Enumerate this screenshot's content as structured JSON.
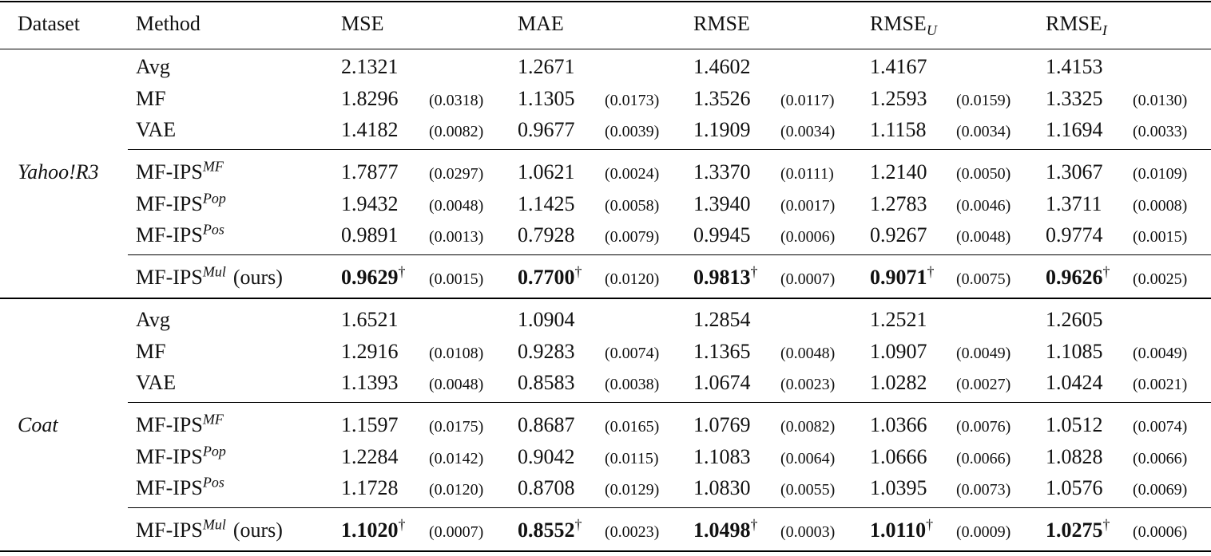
{
  "table": {
    "columns": [
      {
        "text": "Dataset"
      },
      {
        "text": "Method"
      },
      {
        "text": "MSE"
      },
      {
        "text": "MAE"
      },
      {
        "text": "RMSE"
      },
      {
        "text": "RMSE",
        "sub": "U"
      },
      {
        "text": "RMSE",
        "sub": "I"
      }
    ],
    "groups": [
      {
        "dataset": "Yahoo!R3",
        "blocks": [
          [
            {
              "method": {
                "text": "Avg"
              },
              "cells": [
                {
                  "value": "2.1321"
                },
                {
                  "value": "1.2671"
                },
                {
                  "value": "1.4602"
                },
                {
                  "value": "1.4167"
                },
                {
                  "value": "1.4153"
                }
              ]
            },
            {
              "method": {
                "text": "MF"
              },
              "cells": [
                {
                  "value": "1.8296",
                  "std": "(0.0318)"
                },
                {
                  "value": "1.1305",
                  "std": "(0.0173)"
                },
                {
                  "value": "1.3526",
                  "std": "(0.0117)"
                },
                {
                  "value": "1.2593",
                  "std": "(0.0159)"
                },
                {
                  "value": "1.3325",
                  "std": "(0.0130)"
                }
              ]
            },
            {
              "method": {
                "text": "VAE"
              },
              "cells": [
                {
                  "value": "1.4182",
                  "std": "(0.0082)"
                },
                {
                  "value": "0.9677",
                  "std": "(0.0039)"
                },
                {
                  "value": "1.1909",
                  "std": "(0.0034)"
                },
                {
                  "value": "1.1158",
                  "std": "(0.0034)"
                },
                {
                  "value": "1.1694",
                  "std": "(0.0033)"
                }
              ]
            }
          ],
          [
            {
              "method": {
                "text": "MF-IPS",
                "sup": "MF"
              },
              "cells": [
                {
                  "value": "1.7877",
                  "std": "(0.0297)"
                },
                {
                  "value": "1.0621",
                  "std": "(0.0024)"
                },
                {
                  "value": "1.3370",
                  "std": "(0.0111)"
                },
                {
                  "value": "1.2140",
                  "std": "(0.0050)"
                },
                {
                  "value": "1.3067",
                  "std": "(0.0109)"
                }
              ]
            },
            {
              "method": {
                "text": "MF-IPS",
                "sup": "Pop"
              },
              "cells": [
                {
                  "value": "1.9432",
                  "std": "(0.0048)"
                },
                {
                  "value": "1.1425",
                  "std": "(0.0058)"
                },
                {
                  "value": "1.3940",
                  "std": "(0.0017)"
                },
                {
                  "value": "1.2783",
                  "std": "(0.0046)"
                },
                {
                  "value": "1.3711",
                  "std": "(0.0008)"
                }
              ]
            },
            {
              "method": {
                "text": "MF-IPS",
                "sup": "Pos"
              },
              "cells": [
                {
                  "value": "0.9891",
                  "std": "(0.0013)"
                },
                {
                  "value": "0.7928",
                  "std": "(0.0079)"
                },
                {
                  "value": "0.9945",
                  "std": "(0.0006)"
                },
                {
                  "value": "0.9267",
                  "std": "(0.0048)"
                },
                {
                  "value": "0.9774",
                  "std": "(0.0015)"
                }
              ]
            }
          ],
          [
            {
              "method": {
                "text": "MF-IPS",
                "sup": "Mul",
                "suffix": "(ours)"
              },
              "bold": true,
              "cells": [
                {
                  "value": "0.9629",
                  "mark": "†",
                  "std": "(0.0015)"
                },
                {
                  "value": "0.7700",
                  "mark": "†",
                  "std": "(0.0120)"
                },
                {
                  "value": "0.9813",
                  "mark": "†",
                  "std": "(0.0007)"
                },
                {
                  "value": "0.9071",
                  "mark": "†",
                  "std": "(0.0075)"
                },
                {
                  "value": "0.9626",
                  "mark": "†",
                  "std": "(0.0025)"
                }
              ]
            }
          ]
        ]
      },
      {
        "dataset": "Coat",
        "blocks": [
          [
            {
              "method": {
                "text": "Avg"
              },
              "cells": [
                {
                  "value": "1.6521"
                },
                {
                  "value": "1.0904"
                },
                {
                  "value": "1.2854"
                },
                {
                  "value": "1.2521"
                },
                {
                  "value": "1.2605"
                }
              ]
            },
            {
              "method": {
                "text": "MF"
              },
              "cells": [
                {
                  "value": "1.2916",
                  "std": "(0.0108)"
                },
                {
                  "value": "0.9283",
                  "std": "(0.0074)"
                },
                {
                  "value": "1.1365",
                  "std": "(0.0048)"
                },
                {
                  "value": "1.0907",
                  "std": "(0.0049)"
                },
                {
                  "value": "1.1085",
                  "std": "(0.0049)"
                }
              ]
            },
            {
              "method": {
                "text": "VAE"
              },
              "cells": [
                {
                  "value": "1.1393",
                  "std": "(0.0048)"
                },
                {
                  "value": "0.8583",
                  "std": "(0.0038)"
                },
                {
                  "value": "1.0674",
                  "std": "(0.0023)"
                },
                {
                  "value": "1.0282",
                  "std": "(0.0027)"
                },
                {
                  "value": "1.0424",
                  "std": "(0.0021)"
                }
              ]
            }
          ],
          [
            {
              "method": {
                "text": "MF-IPS",
                "sup": "MF"
              },
              "cells": [
                {
                  "value": "1.1597",
                  "std": "(0.0175)"
                },
                {
                  "value": "0.8687",
                  "std": "(0.0165)"
                },
                {
                  "value": "1.0769",
                  "std": "(0.0082)"
                },
                {
                  "value": "1.0366",
                  "std": "(0.0076)"
                },
                {
                  "value": "1.0512",
                  "std": "(0.0074)"
                }
              ]
            },
            {
              "method": {
                "text": "MF-IPS",
                "sup": "Pop"
              },
              "cells": [
                {
                  "value": "1.2284",
                  "std": "(0.0142)"
                },
                {
                  "value": "0.9042",
                  "std": "(0.0115)"
                },
                {
                  "value": "1.1083",
                  "std": "(0.0064)"
                },
                {
                  "value": "1.0666",
                  "std": "(0.0066)"
                },
                {
                  "value": "1.0828",
                  "std": "(0.0066)"
                }
              ]
            },
            {
              "method": {
                "text": "MF-IPS",
                "sup": "Pos"
              },
              "cells": [
                {
                  "value": "1.1728",
                  "std": "(0.0120)"
                },
                {
                  "value": "0.8708",
                  "std": "(0.0129)"
                },
                {
                  "value": "1.0830",
                  "std": "(0.0055)"
                },
                {
                  "value": "1.0395",
                  "std": "(0.0073)"
                },
                {
                  "value": "1.0576",
                  "std": "(0.0069)"
                }
              ]
            }
          ],
          [
            {
              "method": {
                "text": "MF-IPS",
                "sup": "Mul",
                "suffix": "(ours)"
              },
              "bold": true,
              "cells": [
                {
                  "value": "1.1020",
                  "mark": "†",
                  "std": "(0.0007)"
                },
                {
                  "value": "0.8552",
                  "mark": "†",
                  "std": "(0.0023)"
                },
                {
                  "value": "1.0498",
                  "mark": "†",
                  "std": "(0.0003)"
                },
                {
                  "value": "1.0110",
                  "mark": "†",
                  "std": "(0.0009)"
                },
                {
                  "value": "1.0275",
                  "mark": "†",
                  "std": "(0.0006)"
                }
              ]
            }
          ]
        ]
      }
    ]
  }
}
